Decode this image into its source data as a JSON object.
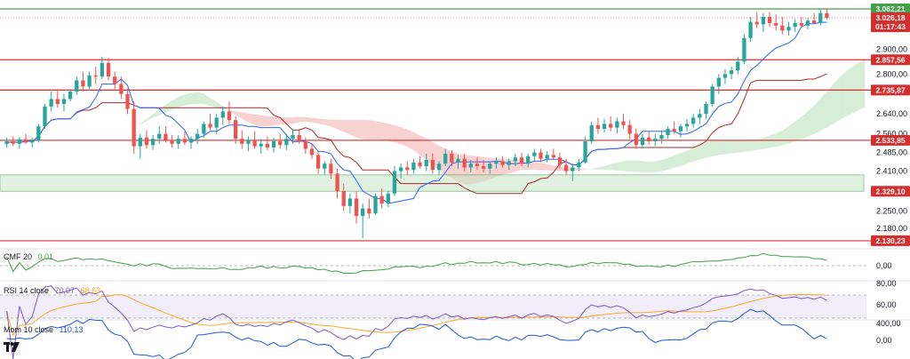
{
  "colors": {
    "up": "#26a69a",
    "down": "#ef5350",
    "level_line": "#d32f2f",
    "green_line": "#43a047",
    "tenkan": "#2962ff",
    "kijun": "#a52a2a",
    "cloud_bull": "#a5d6a7",
    "cloud_bear": "#ef9a9a",
    "cmf": "#43a047",
    "rsi": "#7e57c2",
    "rsi_ma": "#f9a825",
    "mom": "#1e55d9"
  },
  "price_axis": {
    "ticks": [
      "2.900,00",
      "2.800,00",
      "2.640,00",
      "2.560,00",
      "2.485,00",
      "2.410,00",
      "2.250,00",
      "2.180,00"
    ]
  },
  "badges": [
    {
      "text": "3.062,21",
      "kind": "green"
    },
    {
      "text": "3.026,18",
      "kind": "current"
    },
    {
      "text": "01:17:43",
      "kind": "current"
    },
    {
      "text": "2.857,56",
      "kind": "red"
    },
    {
      "text": "2.735,87",
      "kind": "red"
    },
    {
      "text": "2.533,85",
      "kind": "red"
    },
    {
      "text": "2.329,10",
      "kind": "red"
    },
    {
      "text": "2.130,23",
      "kind": "red"
    }
  ],
  "indicators": {
    "cmf": {
      "name": "CMF 20",
      "value": "0,01",
      "axis": [
        "0,00"
      ]
    },
    "rsi": {
      "name": "RSI 14 close",
      "value": "70,07",
      "ma_value": "68,63",
      "axis": [
        "80,00",
        "60,00"
      ]
    },
    "mom": {
      "name": "Mom 10 close",
      "value": "110,13",
      "axis": [
        "400,00",
        "0,00"
      ]
    }
  },
  "logo": "TV",
  "chart_data": {
    "type": "candlestick",
    "symbol_axis": "price",
    "ylim": [
      2105,
      3080
    ],
    "levels": {
      "green_top": 3062.21,
      "red": [
        2857.56,
        2735.87,
        2533.85,
        2130.23
      ],
      "green_zone": [
        2329.1,
        2395
      ],
      "current_price": 3026.18,
      "countdown": "01:17:43"
    },
    "candles": [
      [
        2520,
        2545,
        2505,
        2530
      ],
      [
        2530,
        2550,
        2512,
        2520
      ],
      [
        2520,
        2548,
        2500,
        2538
      ],
      [
        2538,
        2560,
        2520,
        2525
      ],
      [
        2525,
        2545,
        2505,
        2532
      ],
      [
        2532,
        2600,
        2525,
        2590
      ],
      [
        2590,
        2680,
        2580,
        2670
      ],
      [
        2670,
        2730,
        2650,
        2700
      ],
      [
        2700,
        2740,
        2665,
        2680
      ],
      [
        2680,
        2720,
        2650,
        2700
      ],
      [
        2700,
        2740,
        2690,
        2730
      ],
      [
        2730,
        2790,
        2715,
        2775
      ],
      [
        2775,
        2810,
        2730,
        2750
      ],
      [
        2750,
        2810,
        2740,
        2795
      ],
      [
        2795,
        2830,
        2760,
        2790
      ],
      [
        2790,
        2870,
        2780,
        2845
      ],
      [
        2845,
        2865,
        2775,
        2790
      ],
      [
        2790,
        2810,
        2740,
        2760
      ],
      [
        2760,
        2790,
        2700,
        2720
      ],
      [
        2720,
        2740,
        2640,
        2660
      ],
      [
        2660,
        2690,
        2480,
        2510
      ],
      [
        2510,
        2560,
        2460,
        2545
      ],
      [
        2545,
        2575,
        2500,
        2515
      ],
      [
        2515,
        2555,
        2495,
        2540
      ],
      [
        2540,
        2590,
        2520,
        2560
      ],
      [
        2560,
        2590,
        2525,
        2535
      ],
      [
        2535,
        2555,
        2505,
        2520
      ],
      [
        2520,
        2555,
        2500,
        2540
      ],
      [
        2540,
        2570,
        2515,
        2525
      ],
      [
        2525,
        2550,
        2500,
        2540
      ],
      [
        2540,
        2580,
        2520,
        2560
      ],
      [
        2560,
        2610,
        2545,
        2600
      ],
      [
        2600,
        2640,
        2575,
        2585
      ],
      [
        2585,
        2640,
        2560,
        2625
      ],
      [
        2625,
        2670,
        2595,
        2650
      ],
      [
        2650,
        2690,
        2600,
        2615
      ],
      [
        2615,
        2630,
        2520,
        2540
      ],
      [
        2540,
        2575,
        2500,
        2520
      ],
      [
        2520,
        2550,
        2490,
        2535
      ],
      [
        2535,
        2570,
        2500,
        2510
      ],
      [
        2510,
        2540,
        2480,
        2520
      ],
      [
        2520,
        2550,
        2495,
        2505
      ],
      [
        2505,
        2545,
        2485,
        2530
      ],
      [
        2530,
        2560,
        2500,
        2515
      ],
      [
        2515,
        2560,
        2495,
        2540
      ],
      [
        2540,
        2575,
        2520,
        2555
      ],
      [
        2555,
        2580,
        2520,
        2530
      ],
      [
        2530,
        2545,
        2480,
        2500
      ],
      [
        2500,
        2520,
        2460,
        2475
      ],
      [
        2475,
        2490,
        2400,
        2420
      ],
      [
        2420,
        2450,
        2395,
        2440
      ],
      [
        2440,
        2460,
        2380,
        2400
      ],
      [
        2400,
        2420,
        2300,
        2330
      ],
      [
        2330,
        2360,
        2250,
        2270
      ],
      [
        2270,
        2320,
        2240,
        2300
      ],
      [
        2300,
        2330,
        2200,
        2230
      ],
      [
        2230,
        2280,
        2140,
        2260
      ],
      [
        2260,
        2300,
        2220,
        2240
      ],
      [
        2240,
        2320,
        2235,
        2310
      ],
      [
        2310,
        2340,
        2260,
        2280
      ],
      [
        2280,
        2330,
        2265,
        2320
      ],
      [
        2320,
        2430,
        2310,
        2410
      ],
      [
        2410,
        2440,
        2380,
        2425
      ],
      [
        2425,
        2450,
        2395,
        2415
      ],
      [
        2415,
        2460,
        2400,
        2445
      ],
      [
        2445,
        2470,
        2420,
        2430
      ],
      [
        2430,
        2480,
        2410,
        2455
      ],
      [
        2455,
        2480,
        2400,
        2415
      ],
      [
        2415,
        2450,
        2395,
        2440
      ],
      [
        2440,
        2500,
        2430,
        2480
      ],
      [
        2480,
        2495,
        2430,
        2445
      ],
      [
        2445,
        2475,
        2420,
        2460
      ],
      [
        2460,
        2480,
        2410,
        2425
      ],
      [
        2425,
        2455,
        2405,
        2440
      ],
      [
        2440,
        2465,
        2415,
        2430
      ],
      [
        2430,
        2455,
        2405,
        2420
      ],
      [
        2420,
        2450,
        2400,
        2440
      ],
      [
        2440,
        2465,
        2420,
        2450
      ],
      [
        2450,
        2470,
        2425,
        2435
      ],
      [
        2435,
        2460,
        2415,
        2450
      ],
      [
        2450,
        2480,
        2430,
        2465
      ],
      [
        2465,
        2485,
        2430,
        2440
      ],
      [
        2440,
        2480,
        2425,
        2470
      ],
      [
        2470,
        2500,
        2450,
        2485
      ],
      [
        2485,
        2500,
        2445,
        2460
      ],
      [
        2460,
        2490,
        2445,
        2475
      ],
      [
        2475,
        2500,
        2455,
        2465
      ],
      [
        2465,
        2485,
        2420,
        2435
      ],
      [
        2435,
        2460,
        2395,
        2410
      ],
      [
        2410,
        2440,
        2370,
        2425
      ],
      [
        2425,
        2460,
        2410,
        2445
      ],
      [
        2445,
        2550,
        2440,
        2530
      ],
      [
        2530,
        2610,
        2520,
        2595
      ],
      [
        2595,
        2625,
        2560,
        2580
      ],
      [
        2580,
        2620,
        2565,
        2600
      ],
      [
        2600,
        2630,
        2570,
        2585
      ],
      [
        2585,
        2625,
        2560,
        2610
      ],
      [
        2610,
        2640,
        2580,
        2595
      ],
      [
        2595,
        2615,
        2540,
        2560
      ],
      [
        2560,
        2580,
        2500,
        2515
      ],
      [
        2515,
        2560,
        2500,
        2545
      ],
      [
        2545,
        2570,
        2515,
        2530
      ],
      [
        2530,
        2560,
        2510,
        2540
      ],
      [
        2540,
        2575,
        2520,
        2555
      ],
      [
        2555,
        2590,
        2540,
        2580
      ],
      [
        2580,
        2610,
        2560,
        2570
      ],
      [
        2570,
        2600,
        2545,
        2590
      ],
      [
        2590,
        2620,
        2570,
        2600
      ],
      [
        2600,
        2640,
        2585,
        2625
      ],
      [
        2625,
        2660,
        2600,
        2640
      ],
      [
        2640,
        2690,
        2620,
        2680
      ],
      [
        2680,
        2760,
        2670,
        2750
      ],
      [
        2750,
        2800,
        2720,
        2785
      ],
      [
        2785,
        2820,
        2760,
        2800
      ],
      [
        2800,
        2830,
        2780,
        2815
      ],
      [
        2815,
        2870,
        2800,
        2850
      ],
      [
        2850,
        2960,
        2840,
        2945
      ],
      [
        2945,
        3030,
        2930,
        3010
      ],
      [
        3010,
        3050,
        2985,
        3000
      ],
      [
        3000,
        3045,
        2970,
        3030
      ],
      [
        3030,
        3050,
        2990,
        3005
      ],
      [
        3005,
        3040,
        2975,
        2995
      ],
      [
        2995,
        3030,
        2960,
        2975
      ],
      [
        2975,
        3010,
        2955,
        2990
      ],
      [
        2990,
        3020,
        2970,
        3005
      ],
      [
        3005,
        3030,
        2985,
        2995
      ],
      [
        2995,
        3025,
        2980,
        3015
      ],
      [
        3015,
        3045,
        3000,
        3005
      ],
      [
        3005,
        3060,
        2995,
        3045
      ],
      [
        3045,
        3062,
        3020,
        3026
      ]
    ]
  }
}
